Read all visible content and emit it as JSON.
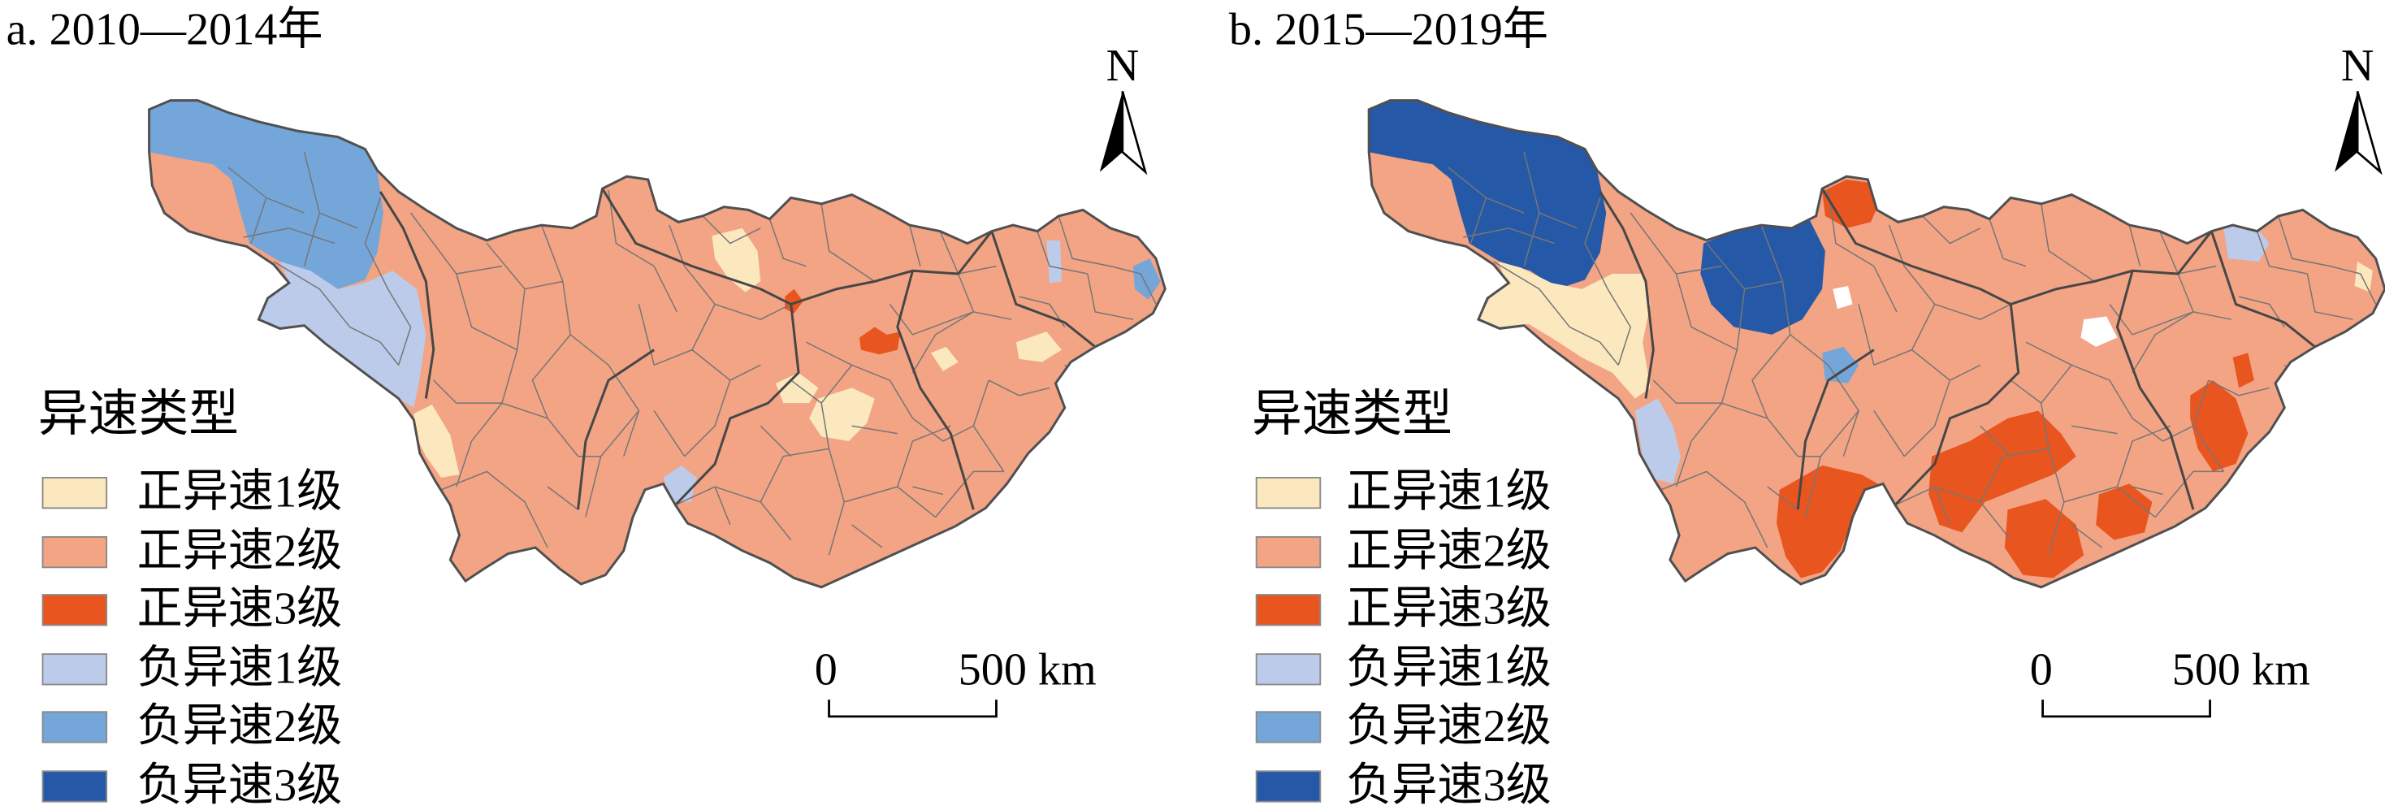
{
  "panels": [
    {
      "id": "a",
      "title": "a. 2010—2014年"
    },
    {
      "id": "b",
      "title": "b. 2015—2019年"
    }
  ],
  "north_arrow": {
    "label": "N"
  },
  "legend": {
    "title": "异速类型",
    "items": [
      {
        "label": "正异速1级",
        "color": "#FCE8BF"
      },
      {
        "label": "正异速2级",
        "color": "#F2A485"
      },
      {
        "label": "正异速3级",
        "color": "#E9551F"
      },
      {
        "label": "负异速1级",
        "color": "#BCCBEA"
      },
      {
        "label": "负异速2级",
        "color": "#74A6DA"
      },
      {
        "label": "负异速3级",
        "color": "#2559A7"
      }
    ]
  },
  "scale_bar": {
    "start_label": "0",
    "end_label": "500 km"
  },
  "colors": {
    "boundary": "#767676",
    "province_boundary": "#474747",
    "outline": "#505050",
    "unfilled": "#FFFFFF"
  }
}
